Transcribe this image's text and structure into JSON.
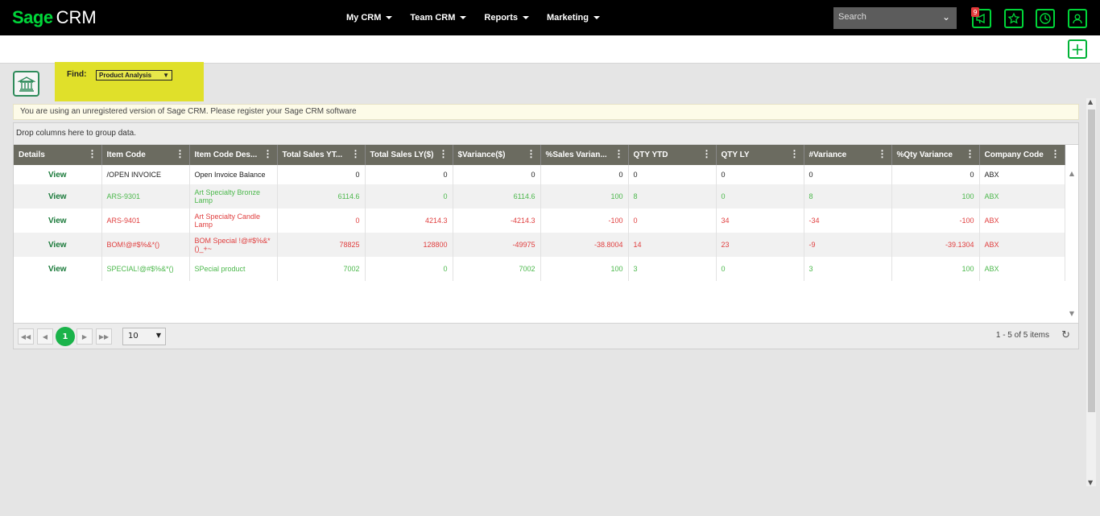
{
  "header": {
    "logo_brand": "Sage",
    "logo_product": "CRM",
    "nav": [
      {
        "label": "My CRM"
      },
      {
        "label": "Team CRM"
      },
      {
        "label": "Reports"
      },
      {
        "label": "Marketing"
      }
    ],
    "search_placeholder": "Search",
    "notification_count": "9"
  },
  "find": {
    "label": "Find:",
    "selected": "Product Analysis"
  },
  "notice": "You are using an unregistered version of Sage CRM. Please register your Sage CRM software",
  "grid": {
    "group_hint": "Drop columns here to group data.",
    "columns": [
      "Details",
      "Item Code",
      "Item Code Des...",
      "Total Sales YT...",
      "Total Sales LY($)",
      "$Variance($)",
      "%Sales Varian...",
      "QTY YTD",
      "QTY LY",
      "#Variance",
      "%Qty Variance",
      "Company Code"
    ],
    "rows": [
      {
        "view": "View",
        "item_code": "/OPEN INVOICE",
        "desc": "Open Invoice Balance",
        "sales_ytd": "0",
        "sales_ly": "0",
        "variance": "0",
        "sales_var_pct": "0",
        "qty_ytd": "0",
        "qty_ly": "0",
        "qty_var": "0",
        "qty_var_pct": "0",
        "company": "ABX",
        "color": "#222222"
      },
      {
        "view": "View",
        "item_code": "ARS-9301",
        "desc": "Art Specialty Bronze Lamp",
        "sales_ytd": "6114.6",
        "sales_ly": "0",
        "variance": "6114.6",
        "sales_var_pct": "100",
        "qty_ytd": "8",
        "qty_ly": "0",
        "qty_var": "8",
        "qty_var_pct": "100",
        "company": "ABX",
        "color": "#4cb84c"
      },
      {
        "view": "View",
        "item_code": "ARS-9401",
        "desc": "Art Specialty Candle Lamp",
        "sales_ytd": "0",
        "sales_ly": "4214.3",
        "variance": "-4214.3",
        "sales_var_pct": "-100",
        "qty_ytd": "0",
        "qty_ly": "34",
        "qty_var": "-34",
        "qty_var_pct": "-100",
        "company": "ABX",
        "color": "#e04040"
      },
      {
        "view": "View",
        "item_code": "BOM!@#$%&*()",
        "desc": "BOM Special !@#$%&*()_+~",
        "sales_ytd": "78825",
        "sales_ly": "128800",
        "variance": "-49975",
        "sales_var_pct": "-38.8004",
        "qty_ytd": "14",
        "qty_ly": "23",
        "qty_var": "-9",
        "qty_var_pct": "-39.1304",
        "company": "ABX",
        "color": "#e04040"
      },
      {
        "view": "View",
        "item_code": "SPECIAL!@#$%&*()",
        "desc": "SPecial product",
        "sales_ytd": "7002",
        "sales_ly": "0",
        "variance": "7002",
        "sales_var_pct": "100",
        "qty_ytd": "3",
        "qty_ly": "0",
        "qty_var": "3",
        "qty_var_pct": "100",
        "company": "ABX",
        "color": "#4cb84c"
      }
    ],
    "pager": {
      "current_page": "1",
      "page_size": "10",
      "info": "1 - 5 of 5 items"
    }
  }
}
